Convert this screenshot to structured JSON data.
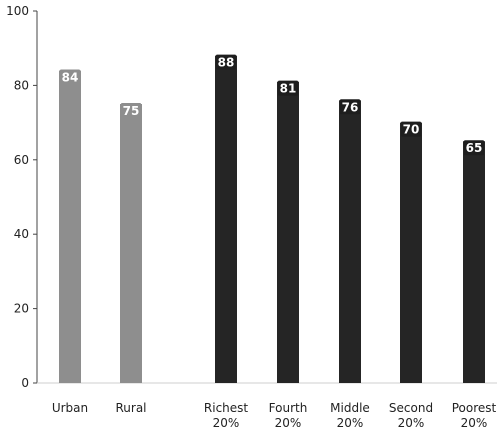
{
  "chart_data": {
    "type": "bar",
    "categories": [
      [
        "Urban"
      ],
      [
        "Rural"
      ],
      [
        "Richest",
        "20%"
      ],
      [
        "Fourth",
        "20%"
      ],
      [
        "Middle",
        "20%"
      ],
      [
        "Second",
        "20%"
      ],
      [
        "Poorest",
        "20%"
      ]
    ],
    "values": [
      84,
      75,
      88,
      81,
      76,
      70,
      65
    ],
    "data_labels": [
      "84",
      "75",
      "88",
      "81",
      "76",
      "70",
      "65"
    ],
    "bar_groups": [
      "residence",
      "residence",
      "wealth",
      "wealth",
      "wealth",
      "wealth",
      "wealth"
    ],
    "title": "",
    "xlabel": "",
    "ylabel": "",
    "ylim": [
      0,
      100
    ],
    "yticks": [
      "0",
      "20",
      "40",
      "60",
      "80",
      "100"
    ],
    "grid": false,
    "legend": "none",
    "colors": {
      "residence": "#8e8e8e",
      "wealth": "#252525",
      "label_box": "#1e1e1e",
      "label_text": "#ffffff",
      "axis": "#444444",
      "text": "#222222"
    }
  }
}
